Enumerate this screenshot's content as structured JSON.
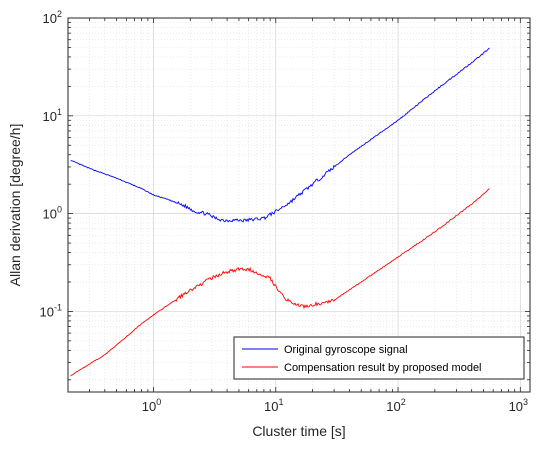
{
  "chart_data": {
    "type": "line",
    "xlabel": "Cluster time [s]",
    "ylabel": "Allan derivation [degree/h]",
    "xscale": "log",
    "yscale": "log",
    "xlim": [
      0.2,
      1200
    ],
    "ylim": [
      0.015,
      100
    ],
    "x_ticks": [
      {
        "base": "10",
        "exp": "0"
      },
      {
        "base": "10",
        "exp": "1"
      },
      {
        "base": "10",
        "exp": "2"
      },
      {
        "base": "10",
        "exp": "3"
      }
    ],
    "y_ticks": [
      {
        "base": "10",
        "exp": "-1"
      },
      {
        "base": "10",
        "exp": "0"
      },
      {
        "base": "10",
        "exp": "1"
      },
      {
        "base": "10",
        "exp": "2"
      }
    ],
    "grid": true,
    "legend_position": "bottom-right",
    "series": [
      {
        "name": "Original gyroscope signal",
        "color": "#0000ff",
        "x": [
          0.21,
          0.3,
          0.5,
          0.8,
          1.0,
          1.3,
          1.8,
          2.2,
          2.7,
          3.2,
          3.8,
          4.5,
          5.5,
          6.5,
          8.0,
          10,
          13,
          20,
          40,
          100,
          200,
          400,
          560
        ],
        "y": [
          3.5,
          2.9,
          2.3,
          1.8,
          1.55,
          1.4,
          1.2,
          1.05,
          1.0,
          0.9,
          0.85,
          0.86,
          0.85,
          0.87,
          0.9,
          1.05,
          1.3,
          2.0,
          4.0,
          9.0,
          18,
          35,
          49
        ]
      },
      {
        "name": "Compensation result by proposed model",
        "color": "#ff0000",
        "x": [
          0.21,
          0.3,
          0.4,
          0.6,
          0.8,
          1.0,
          1.5,
          2.0,
          3.0,
          4.0,
          5.0,
          6.0,
          7.0,
          8.0,
          9.0,
          10,
          12,
          15,
          18,
          22,
          30,
          50,
          100,
          200,
          400,
          560
        ],
        "y": [
          0.022,
          0.029,
          0.036,
          0.055,
          0.075,
          0.092,
          0.13,
          0.165,
          0.22,
          0.255,
          0.27,
          0.27,
          0.25,
          0.235,
          0.22,
          0.18,
          0.135,
          0.115,
          0.112,
          0.12,
          0.13,
          0.2,
          0.36,
          0.65,
          1.25,
          1.8
        ]
      }
    ]
  }
}
